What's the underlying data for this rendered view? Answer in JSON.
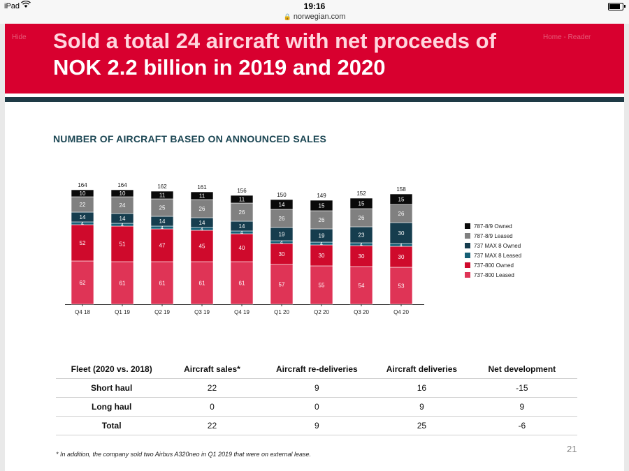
{
  "status_bar": {
    "device": "iPad",
    "time": "19:16",
    "url": "norwegian.com"
  },
  "ghost_nav": {
    "left": "Hide",
    "right": "Home - Reader"
  },
  "slide": {
    "title_line1": "Sold a total 24 aircraft with net proceeds of",
    "title_line2": "NOK 2.2 billion in 2019 and 2020",
    "chart_heading": "NUMBER OF AIRCRAFT BASED ON ANNOUNCED SALES",
    "page_number": "21",
    "footnote": "* In addition, the company sold two Airbus A320neo in Q1 2019 that were on external lease."
  },
  "colors": {
    "banner": "#d8002f",
    "dark_stripe": "#1e3a45"
  },
  "chart_data": {
    "type": "bar",
    "stacked": true,
    "title": "NUMBER OF AIRCRAFT BASED ON ANNOUNCED SALES",
    "categories": [
      "Q4 18",
      "Q1 19",
      "Q2 19",
      "Q3 19",
      "Q4 19",
      "Q1 20",
      "Q2 20",
      "Q3 20",
      "Q4 20"
    ],
    "totals": [
      164,
      164,
      162,
      161,
      156,
      150,
      149,
      152,
      158
    ],
    "series": [
      {
        "name": "737-800 Leased",
        "color": "#df3456",
        "values": [
          62,
          61,
          61,
          61,
          61,
          57,
          55,
          54,
          53
        ]
      },
      {
        "name": "737-800 Owned",
        "color": "#cf0a2c",
        "values": [
          52,
          51,
          47,
          45,
          40,
          30,
          30,
          30,
          30
        ]
      },
      {
        "name": "737 MAX 8 Leased",
        "color": "#155f75",
        "values": [
          4,
          4,
          4,
          4,
          4,
          4,
          4,
          4,
          4
        ]
      },
      {
        "name": "737 MAX 8 Owned",
        "color": "#163d4e",
        "values": [
          14,
          14,
          14,
          14,
          14,
          19,
          19,
          23,
          30
        ]
      },
      {
        "name": "787-8/9 Leased",
        "color": "#808080",
        "values": [
          22,
          24,
          25,
          26,
          26,
          26,
          26,
          26,
          26
        ]
      },
      {
        "name": "787-8/9 Owned",
        "color": "#0a0a0a",
        "values": [
          10,
          10,
          11,
          11,
          11,
          14,
          15,
          15,
          15
        ]
      }
    ],
    "legend_order": [
      "787-8/9 Owned",
      "787-8/9 Leased",
      "737 MAX 8 Owned",
      "737 MAX 8 Leased",
      "737-800 Owned",
      "737-800 Leased"
    ],
    "legend_position": "right",
    "ylim": [
      0,
      170
    ],
    "xlabel": "",
    "ylabel": "",
    "grid": false
  },
  "table": {
    "headers": [
      "Fleet (2020 vs. 2018)",
      "Aircraft sales*",
      "Aircraft re-deliveries",
      "Aircraft deliveries",
      "Net development"
    ],
    "rows": [
      [
        "Short haul",
        "22",
        "9",
        "16",
        "-15"
      ],
      [
        "Long haul",
        "0",
        "0",
        "9",
        "9"
      ],
      [
        "Total",
        "22",
        "9",
        "25",
        "-6"
      ]
    ]
  }
}
